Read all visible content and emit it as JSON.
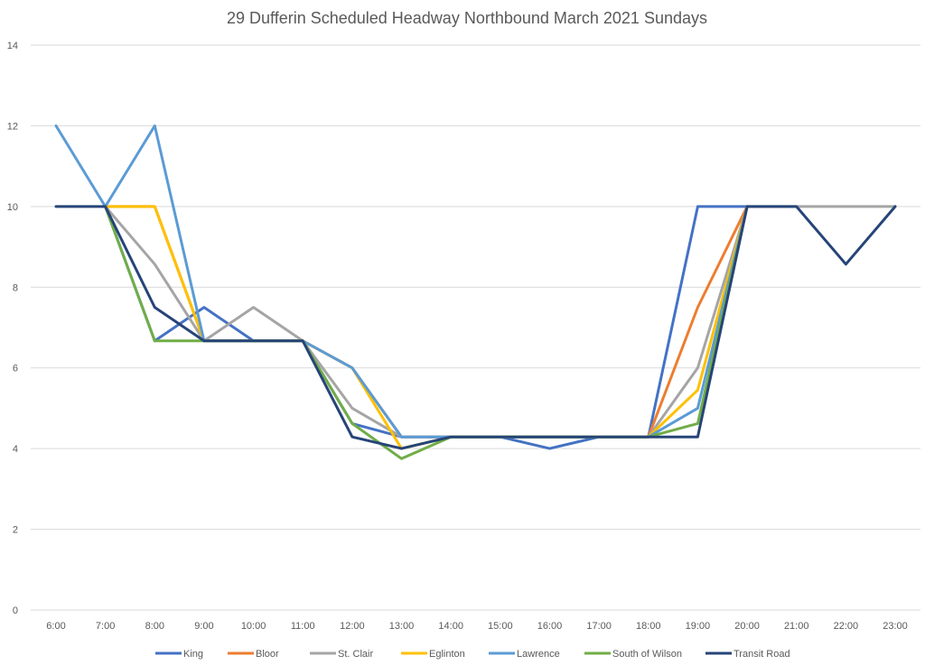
{
  "chart_data": {
    "type": "line",
    "title": "29 Dufferin  Scheduled Headway Northbound March 2021 Sundays",
    "xlabel": "",
    "ylabel": "",
    "categories": [
      "6:00",
      "7:00",
      "8:00",
      "9:00",
      "10:00",
      "11:00",
      "12:00",
      "13:00",
      "14:00",
      "15:00",
      "16:00",
      "17:00",
      "18:00",
      "19:00",
      "20:00",
      "21:00",
      "22:00",
      "23:00"
    ],
    "ylim": [
      0,
      14
    ],
    "yticks": [
      "0",
      "2",
      "4",
      "6",
      "8",
      "10",
      "12",
      "14"
    ],
    "grid": true,
    "legend_position": "bottom",
    "series": [
      {
        "name": "King",
        "color": "#4472c4",
        "values": [
          null,
          10,
          6.67,
          7.5,
          6.67,
          6.67,
          4.62,
          4.29,
          4.29,
          4.29,
          4.0,
          4.29,
          4.29,
          10,
          10,
          null,
          null,
          null
        ]
      },
      {
        "name": "Bloor",
        "color": "#ed7d31",
        "values": [
          null,
          10,
          10,
          6.67,
          6.67,
          6.67,
          6.0,
          4.29,
          4.29,
          4.29,
          4.29,
          4.29,
          4.29,
          7.5,
          10,
          null,
          null,
          null
        ]
      },
      {
        "name": "St. Clair",
        "color": "#a5a5a5",
        "values": [
          null,
          10,
          8.57,
          6.67,
          7.5,
          6.67,
          5.0,
          4.29,
          4.29,
          4.29,
          4.29,
          4.29,
          4.29,
          6.0,
          10,
          10,
          10,
          10
        ]
      },
      {
        "name": "Eglinton",
        "color": "#ffc000",
        "values": [
          null,
          10,
          10,
          6.67,
          6.67,
          6.67,
          6.0,
          4.0,
          4.29,
          4.29,
          4.29,
          4.29,
          4.29,
          5.45,
          10,
          null,
          null,
          null
        ]
      },
      {
        "name": "Lawrence",
        "color": "#5b9bd5",
        "values": [
          12,
          10,
          12,
          6.67,
          6.67,
          6.67,
          6.0,
          4.29,
          4.29,
          4.29,
          4.29,
          4.29,
          4.29,
          5.0,
          10,
          null,
          null,
          null
        ]
      },
      {
        "name": "South of Wilson",
        "color": "#70ad47",
        "values": [
          null,
          10,
          6.67,
          6.67,
          6.67,
          6.67,
          4.62,
          3.75,
          4.29,
          4.29,
          4.29,
          4.29,
          4.29,
          4.62,
          10,
          null,
          null,
          null
        ]
      },
      {
        "name": "Transit Road",
        "color": "#264478",
        "values": [
          10,
          10,
          7.5,
          6.67,
          6.67,
          6.67,
          4.29,
          4.0,
          4.29,
          4.29,
          4.29,
          4.29,
          4.29,
          4.29,
          10,
          10,
          8.57,
          10
        ]
      }
    ]
  }
}
